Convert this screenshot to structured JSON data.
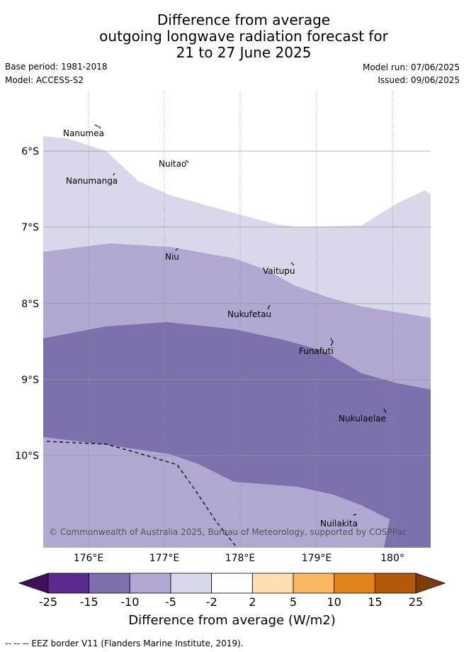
{
  "header": {
    "title_line1": "Difference from average",
    "title_line2": "outgoing longwave radiation forecast for",
    "title_line3": "21 to 27 June 2025",
    "base_period": "Base period: 1981-2018",
    "model": "Model: ACCESS-S2",
    "model_run": "Model run: 07/06/2025",
    "issued": "Issued: 09/06/2025"
  },
  "map": {
    "lon_labels": [
      "176°E",
      "177°E",
      "178°E",
      "179°E",
      "180°"
    ],
    "lat_labels": [
      "6°S",
      "7°S",
      "8°S",
      "9°S",
      "10°S"
    ],
    "places": [
      {
        "name": "Nanumea"
      },
      {
        "name": "Nuitao"
      },
      {
        "name": "Nanumanga"
      },
      {
        "name": "Niu"
      },
      {
        "name": "Vaitupu"
      },
      {
        "name": "Nukufetau"
      },
      {
        "name": "Funafuti"
      },
      {
        "name": "Nukulaelae"
      },
      {
        "name": "Nuilakita"
      }
    ],
    "copyright": "© Commonwealth of Australia 2025, Bureau of Meteorology, supported by COSPPac"
  },
  "colorbar": {
    "ticks": [
      "-25",
      "-15",
      "-10",
      "-5",
      "-2",
      "2",
      "5",
      "10",
      "15",
      "25"
    ],
    "colors": [
      "#5a2a8e",
      "#7e70ab",
      "#b0a8d0",
      "#d8d8ea",
      "#ffffff",
      "#fde0b2",
      "#fdb762",
      "#e3841a",
      "#b35a06"
    ],
    "low_extend_color": "#3e0f5c",
    "high_extend_color": "#7f3b08",
    "label": "Difference from average (W/m2)"
  },
  "footer": {
    "eez_text": "-- -- -- EEZ border V11 (Flanders Marine Institute, 2019)."
  }
}
